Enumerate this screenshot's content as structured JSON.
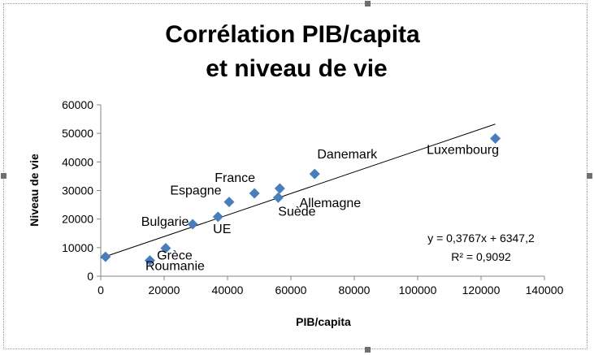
{
  "chart_data": {
    "type": "scatter",
    "title_lines": [
      "Corrélation PIB/capita",
      "et niveau de vie"
    ],
    "xlabel": "PIB/capita",
    "ylabel": "Niveau de vie",
    "xlim": [
      0,
      140000
    ],
    "ylim": [
      0,
      60000
    ],
    "x_ticks": [
      0,
      20000,
      40000,
      60000,
      80000,
      100000,
      120000,
      140000
    ],
    "y_ticks": [
      0,
      10000,
      20000,
      30000,
      40000,
      50000,
      60000
    ],
    "grid": false,
    "legend": "none",
    "marker_color": "#4a7ebb",
    "points": [
      {
        "x": 1500,
        "y": 6800,
        "label": ""
      },
      {
        "x": 15500,
        "y": 5500,
        "label": "Roumanie"
      },
      {
        "x": 20500,
        "y": 9800,
        "label": "Grèce"
      },
      {
        "x": 29000,
        "y": 18200,
        "label": "Bulgarie"
      },
      {
        "x": 37000,
        "y": 20800,
        "label": "UE"
      },
      {
        "x": 40500,
        "y": 26000,
        "label": "Espagne"
      },
      {
        "x": 48500,
        "y": 29000,
        "label": "France"
      },
      {
        "x": 56000,
        "y": 27500,
        "label": "Suède"
      },
      {
        "x": 56500,
        "y": 30700,
        "label": "Allemagne"
      },
      {
        "x": 67500,
        "y": 35800,
        "label": "Danemark"
      },
      {
        "x": 124500,
        "y": 48200,
        "label": "Luxembourg"
      }
    ],
    "trendline": {
      "slope": 0.3767,
      "intercept": 6347.2,
      "x_range": [
        0,
        124500
      ],
      "equation": "y = 0,3767x + 6347,2",
      "r_squared": "R² = 0,9092"
    }
  }
}
